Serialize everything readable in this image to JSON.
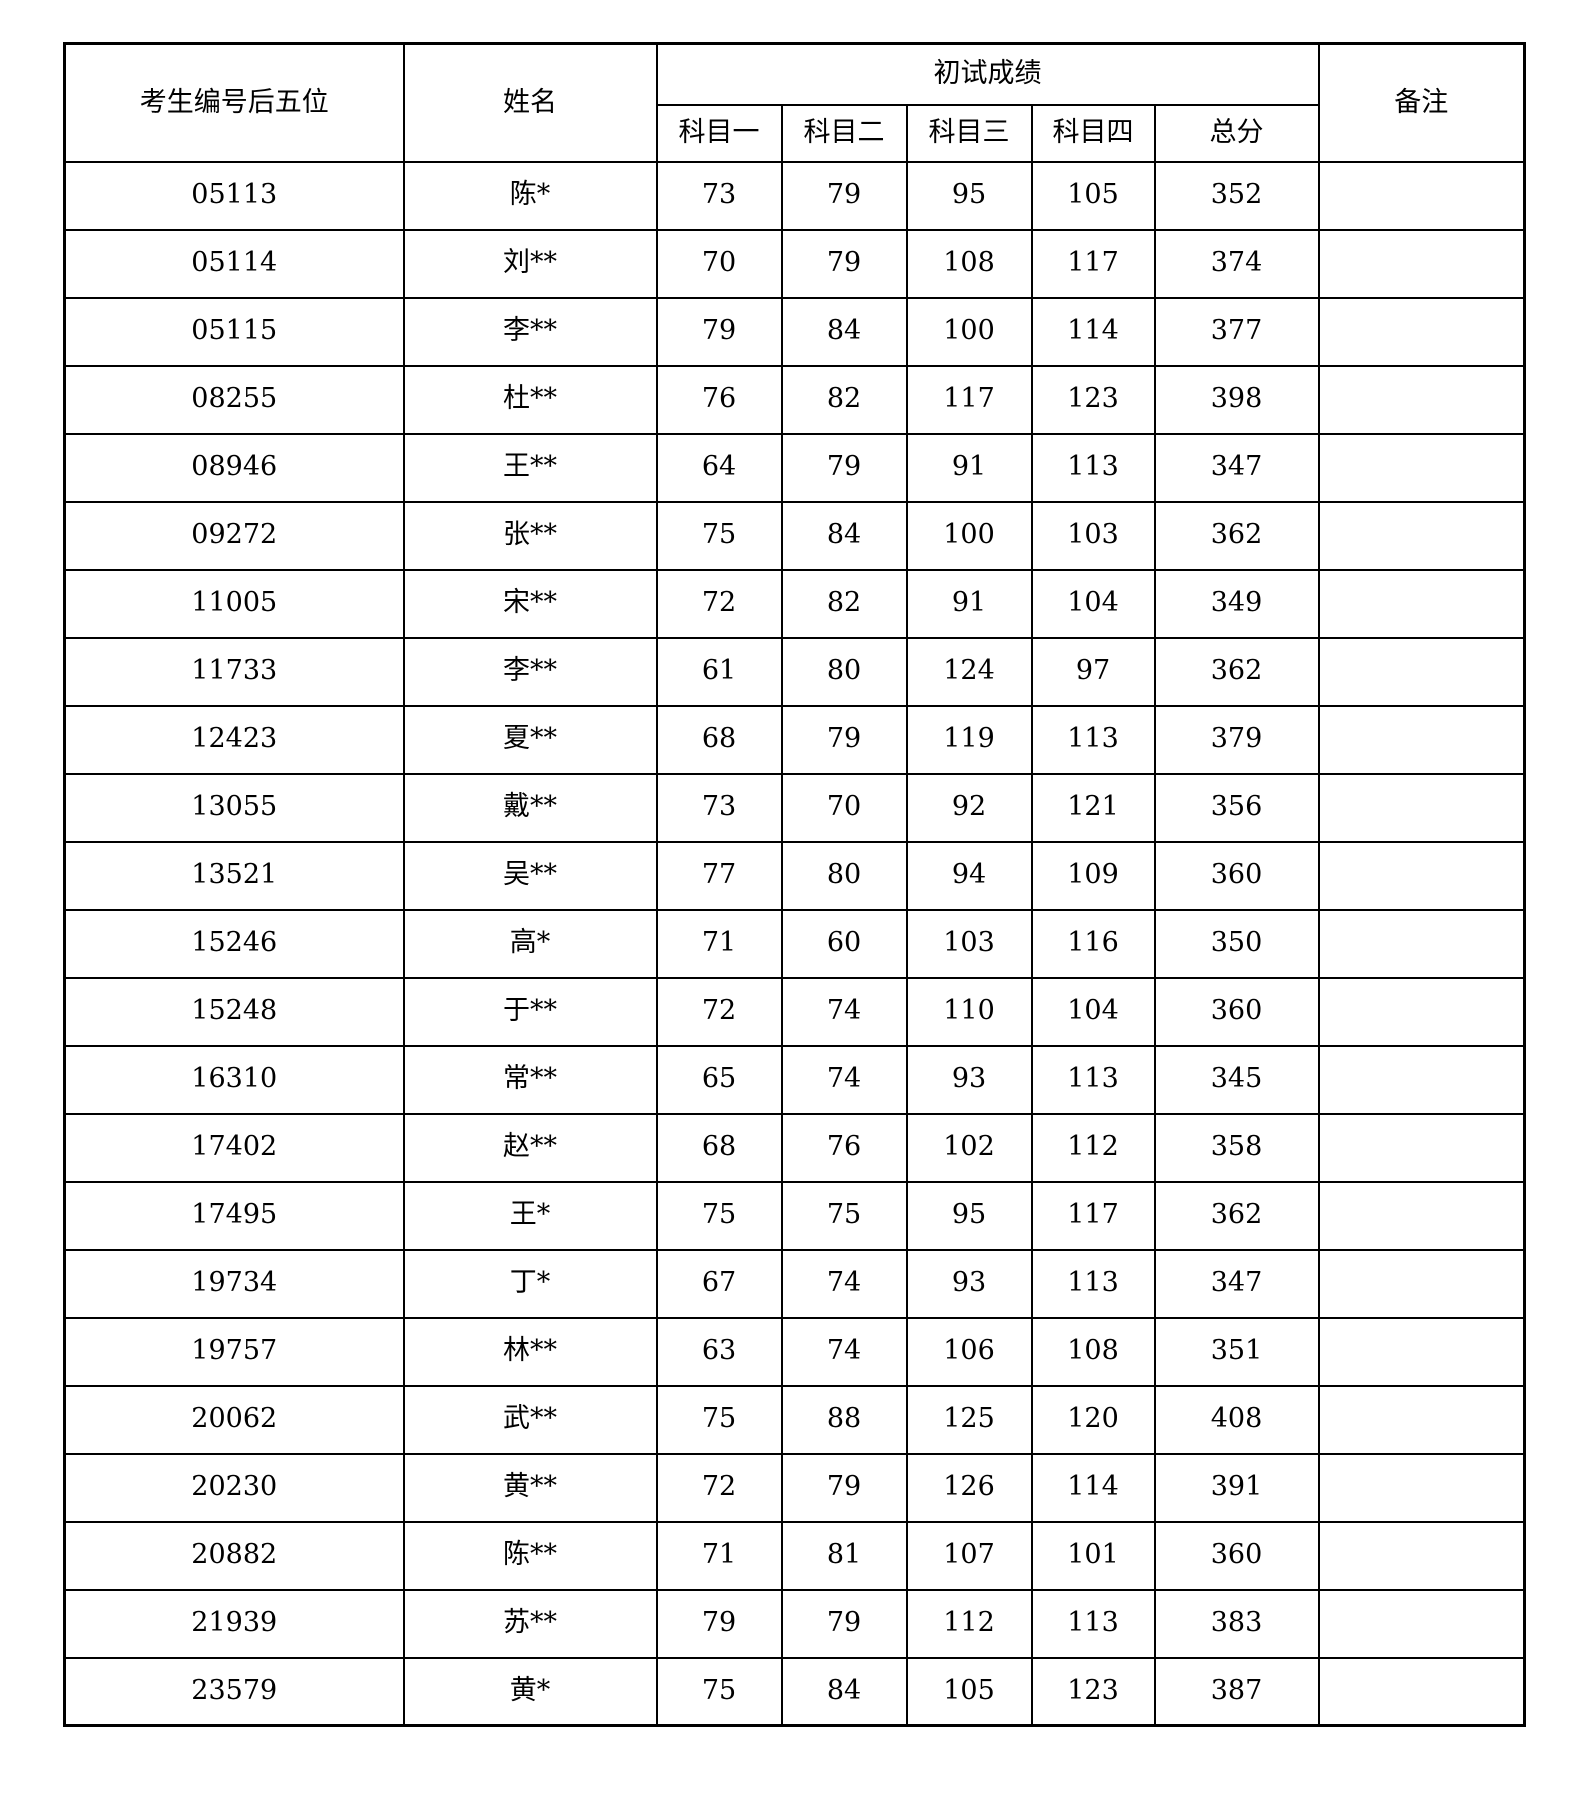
{
  "table": {
    "headers": {
      "candidate_id": "考生编号后五位",
      "name": "姓名",
      "score_group": "初试成绩",
      "subject1": "科目一",
      "subject2": "科目二",
      "subject3": "科目三",
      "subject4": "科目四",
      "total": "总分",
      "remarks": "备注"
    },
    "rows": [
      {
        "id": "05113",
        "name": "陈*",
        "s1": "73",
        "s2": "79",
        "s3": "95",
        "s4": "105",
        "total": "352",
        "remark": ""
      },
      {
        "id": "05114",
        "name": "刘**",
        "s1": "70",
        "s2": "79",
        "s3": "108",
        "s4": "117",
        "total": "374",
        "remark": ""
      },
      {
        "id": "05115",
        "name": "李**",
        "s1": "79",
        "s2": "84",
        "s3": "100",
        "s4": "114",
        "total": "377",
        "remark": ""
      },
      {
        "id": "08255",
        "name": "杜**",
        "s1": "76",
        "s2": "82",
        "s3": "117",
        "s4": "123",
        "total": "398",
        "remark": ""
      },
      {
        "id": "08946",
        "name": "王**",
        "s1": "64",
        "s2": "79",
        "s3": "91",
        "s4": "113",
        "total": "347",
        "remark": ""
      },
      {
        "id": "09272",
        "name": "张**",
        "s1": "75",
        "s2": "84",
        "s3": "100",
        "s4": "103",
        "total": "362",
        "remark": ""
      },
      {
        "id": "11005",
        "name": "宋**",
        "s1": "72",
        "s2": "82",
        "s3": "91",
        "s4": "104",
        "total": "349",
        "remark": ""
      },
      {
        "id": "11733",
        "name": "李**",
        "s1": "61",
        "s2": "80",
        "s3": "124",
        "s4": "97",
        "total": "362",
        "remark": ""
      },
      {
        "id": "12423",
        "name": "夏**",
        "s1": "68",
        "s2": "79",
        "s3": "119",
        "s4": "113",
        "total": "379",
        "remark": ""
      },
      {
        "id": "13055",
        "name": "戴**",
        "s1": "73",
        "s2": "70",
        "s3": "92",
        "s4": "121",
        "total": "356",
        "remark": ""
      },
      {
        "id": "13521",
        "name": "吴**",
        "s1": "77",
        "s2": "80",
        "s3": "94",
        "s4": "109",
        "total": "360",
        "remark": ""
      },
      {
        "id": "15246",
        "name": "高*",
        "s1": "71",
        "s2": "60",
        "s3": "103",
        "s4": "116",
        "total": "350",
        "remark": ""
      },
      {
        "id": "15248",
        "name": "于**",
        "s1": "72",
        "s2": "74",
        "s3": "110",
        "s4": "104",
        "total": "360",
        "remark": ""
      },
      {
        "id": "16310",
        "name": "常**",
        "s1": "65",
        "s2": "74",
        "s3": "93",
        "s4": "113",
        "total": "345",
        "remark": ""
      },
      {
        "id": "17402",
        "name": "赵**",
        "s1": "68",
        "s2": "76",
        "s3": "102",
        "s4": "112",
        "total": "358",
        "remark": ""
      },
      {
        "id": "17495",
        "name": "王*",
        "s1": "75",
        "s2": "75",
        "s3": "95",
        "s4": "117",
        "total": "362",
        "remark": ""
      },
      {
        "id": "19734",
        "name": "丁*",
        "s1": "67",
        "s2": "74",
        "s3": "93",
        "s4": "113",
        "total": "347",
        "remark": ""
      },
      {
        "id": "19757",
        "name": "林**",
        "s1": "63",
        "s2": "74",
        "s3": "106",
        "s4": "108",
        "total": "351",
        "remark": ""
      },
      {
        "id": "20062",
        "name": "武**",
        "s1": "75",
        "s2": "88",
        "s3": "125",
        "s4": "120",
        "total": "408",
        "remark": ""
      },
      {
        "id": "20230",
        "name": "黄**",
        "s1": "72",
        "s2": "79",
        "s3": "126",
        "s4": "114",
        "total": "391",
        "remark": ""
      },
      {
        "id": "20882",
        "name": "陈**",
        "s1": "71",
        "s2": "81",
        "s3": "107",
        "s4": "101",
        "total": "360",
        "remark": ""
      },
      {
        "id": "21939",
        "name": "苏**",
        "s1": "79",
        "s2": "79",
        "s3": "112",
        "s4": "113",
        "total": "383",
        "remark": ""
      },
      {
        "id": "23579",
        "name": "黄*",
        "s1": "75",
        "s2": "84",
        "s3": "105",
        "s4": "123",
        "total": "387",
        "remark": ""
      }
    ]
  }
}
